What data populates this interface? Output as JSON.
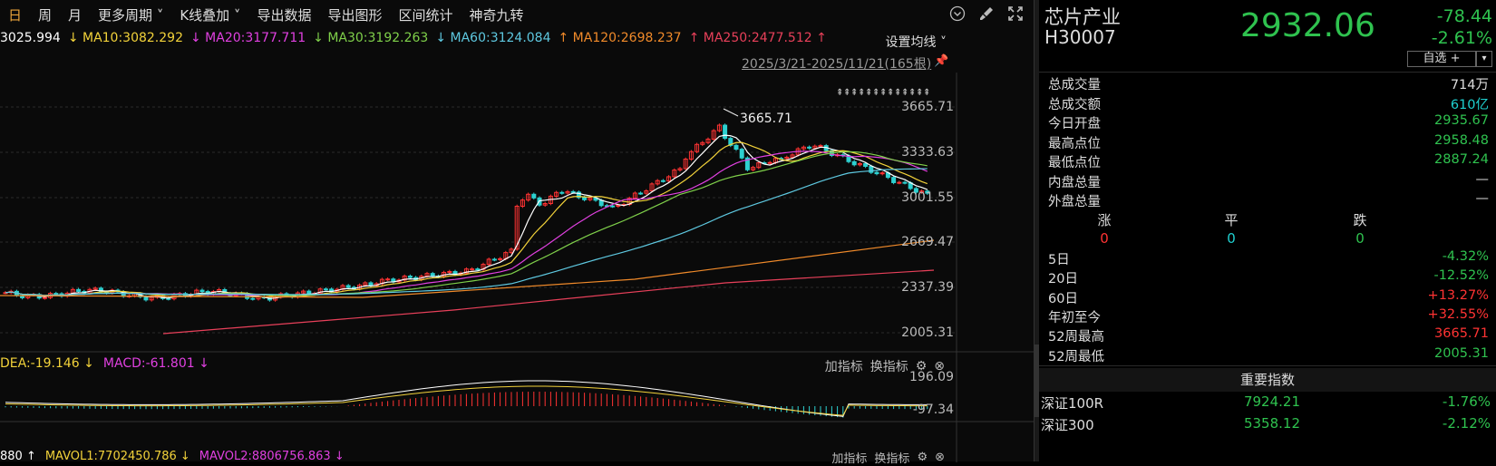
{
  "toolbar": {
    "items": [
      "日",
      "周",
      "月",
      "更多周期 ˅",
      "K线叠加 ˅",
      "导出数据",
      "导出图形",
      "区间统计",
      "神奇九转"
    ],
    "icons": [
      "chevron-down-circle-icon",
      "brush-icon",
      "expand-icon"
    ]
  },
  "ma_line": {
    "lead": "3025.994",
    "ma10": "↓ MA10:3082.292",
    "ma20": "↓ MA20:3177.711",
    "ma30": "↓ MA30:3192.263",
    "ma60": "↓ MA60:3124.084",
    "ma120": "↑ MA120:2698.237",
    "ma250": "↑ MA250:2477.512 ↑",
    "settings": "设置均线 ˅",
    "colors": {
      "lead": "#ffffff",
      "ma10": "#f2d23a",
      "ma20": "#e040e0",
      "ma30": "#7fd04a",
      "ma60": "#5ec8e0",
      "ma120": "#f08a2a",
      "ma250": "#e8405a"
    }
  },
  "date_range": "2025/3/21-2025/11/21(165根)",
  "y_ticks": [
    "3665.71",
    "3333.63",
    "3001.55",
    "2669.47",
    "2337.39",
    "2005.31"
  ],
  "high_marker": "3665.71",
  "macd": {
    "dea": "DEA:-19.146 ↓",
    "macd": "MACD:-61.801 ↓",
    "add_indicator": "加指标",
    "switch_indicator": "换指标",
    "y_ticks": [
      "196.09",
      "-97.34"
    ]
  },
  "vol": {
    "lead": "880 ↑",
    "mavol1": "MAVOL1:7702450.786 ↓",
    "mavol2": "MAVOL2:8806756.863 ↓",
    "add_indicator": "加指标",
    "switch_indicator": "换指标"
  },
  "panel": {
    "name": "芯片产业",
    "code": "H30007",
    "price": "2932.06",
    "change": "-78.44",
    "change_pct": "-2.61%",
    "watch_button": "自选 +",
    "watch_dropdown": "▾",
    "stats": [
      {
        "k": "总成交量",
        "v": "714万",
        "c": "white"
      },
      {
        "k": "总成交额",
        "v": "610亿",
        "c": "cyan"
      },
      {
        "k": "今日开盘",
        "v": "2935.67",
        "c": "green"
      },
      {
        "k": "最高点位",
        "v": "2958.48",
        "c": "green"
      },
      {
        "k": "最低点位",
        "v": "2887.24",
        "c": "green"
      },
      {
        "k": "内盘总量",
        "v": "—",
        "c": "white"
      },
      {
        "k": "外盘总量",
        "v": "—",
        "c": "white"
      }
    ],
    "breadth_labels": [
      "涨",
      "平",
      "跌"
    ],
    "breadth_values": [
      "0",
      "0",
      "0"
    ],
    "perf": [
      {
        "k": "5日",
        "v": "-4.32%",
        "c": "green"
      },
      {
        "k": "20日",
        "v": "-12.52%",
        "c": "green"
      },
      {
        "k": "60日",
        "v": "+13.27%",
        "c": "red"
      },
      {
        "k": "年初至今",
        "v": "+32.55%",
        "c": "red"
      },
      {
        "k": "52周最高",
        "v": "3665.71",
        "c": "red"
      },
      {
        "k": "52周最低",
        "v": "2005.31",
        "c": "green"
      }
    ],
    "index_header": "重要指数",
    "indices": [
      {
        "n": "深证100R",
        "p": "7924.21",
        "c": "-1.76%"
      },
      {
        "n": "深证300",
        "p": "5358.12",
        "c": "-2.12%"
      }
    ]
  }
}
